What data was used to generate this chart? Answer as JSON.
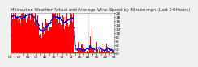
{
  "title": "Milwaukee Weather Actual and Average Wind Speed by Minute mph (Last 24 Hours)",
  "background_color": "#f0f0f0",
  "plot_bg_color": "#ffffff",
  "grid_color": "#aaaaaa",
  "bar_color": "#ff0000",
  "avg_color": "#0000cc",
  "n_minutes": 1440,
  "ylim": [
    0,
    20
  ],
  "yticks": [
    0,
    2,
    4,
    6,
    8,
    10,
    12,
    14,
    16,
    18,
    20
  ],
  "title_fontsize": 3.8,
  "tick_fontsize": 3.2,
  "drop_point": 0.62,
  "high_base": 11.0,
  "seed": 17
}
